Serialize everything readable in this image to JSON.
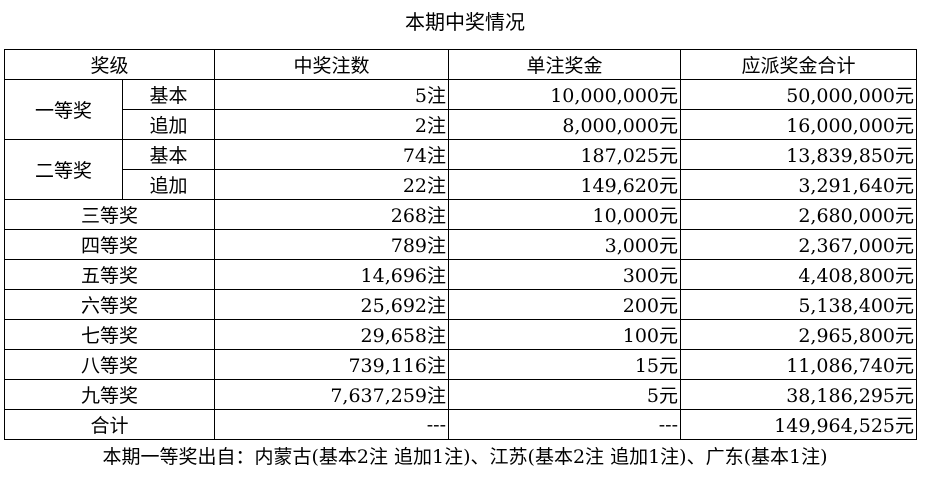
{
  "title": "本期中奖情况",
  "table": {
    "header": [
      "奖级",
      "中奖注数",
      "单注奖金",
      "应派奖金合计"
    ],
    "groups": [
      {
        "level": "一等奖",
        "subs": [
          {
            "name": "基本",
            "cells": [
              "5注",
              "10,000,000元",
              "50,000,000元"
            ]
          },
          {
            "name": "追加",
            "cells": [
              "2注",
              "8,000,000元",
              "16,000,000元"
            ]
          }
        ]
      },
      {
        "level": "二等奖",
        "subs": [
          {
            "name": "基本",
            "cells": [
              "74注",
              "187,025元",
              "13,839,850元"
            ]
          },
          {
            "name": "追加",
            "cells": [
              "22注",
              "149,620元",
              "3,291,640元"
            ]
          }
        ]
      }
    ],
    "rows": [
      {
        "level": "三等奖",
        "cells": [
          "268注",
          "10,000元",
          "2,680,000元"
        ]
      },
      {
        "level": "四等奖",
        "cells": [
          "789注",
          "3,000元",
          "2,367,000元"
        ]
      },
      {
        "level": "五等奖",
        "cells": [
          "14,696注",
          "300元",
          "4,408,800元"
        ]
      },
      {
        "level": "六等奖",
        "cells": [
          "25,692注",
          "200元",
          "5,138,400元"
        ]
      },
      {
        "level": "七等奖",
        "cells": [
          "29,658注",
          "100元",
          "2,965,800元"
        ]
      },
      {
        "level": "八等奖",
        "cells": [
          "739,116注",
          "15元",
          "11,086,740元"
        ]
      },
      {
        "level": "九等奖",
        "cells": [
          "7,637,259注",
          "5元",
          "38,186,295元"
        ]
      },
      {
        "level": "合计",
        "cells": [
          "---",
          "---",
          "149,964,525元"
        ]
      }
    ]
  },
  "footer": "本期一等奖出自：内蒙古(基本2注 追加1注)、江苏(基本2注 追加1注)、广东(基本1注)"
}
